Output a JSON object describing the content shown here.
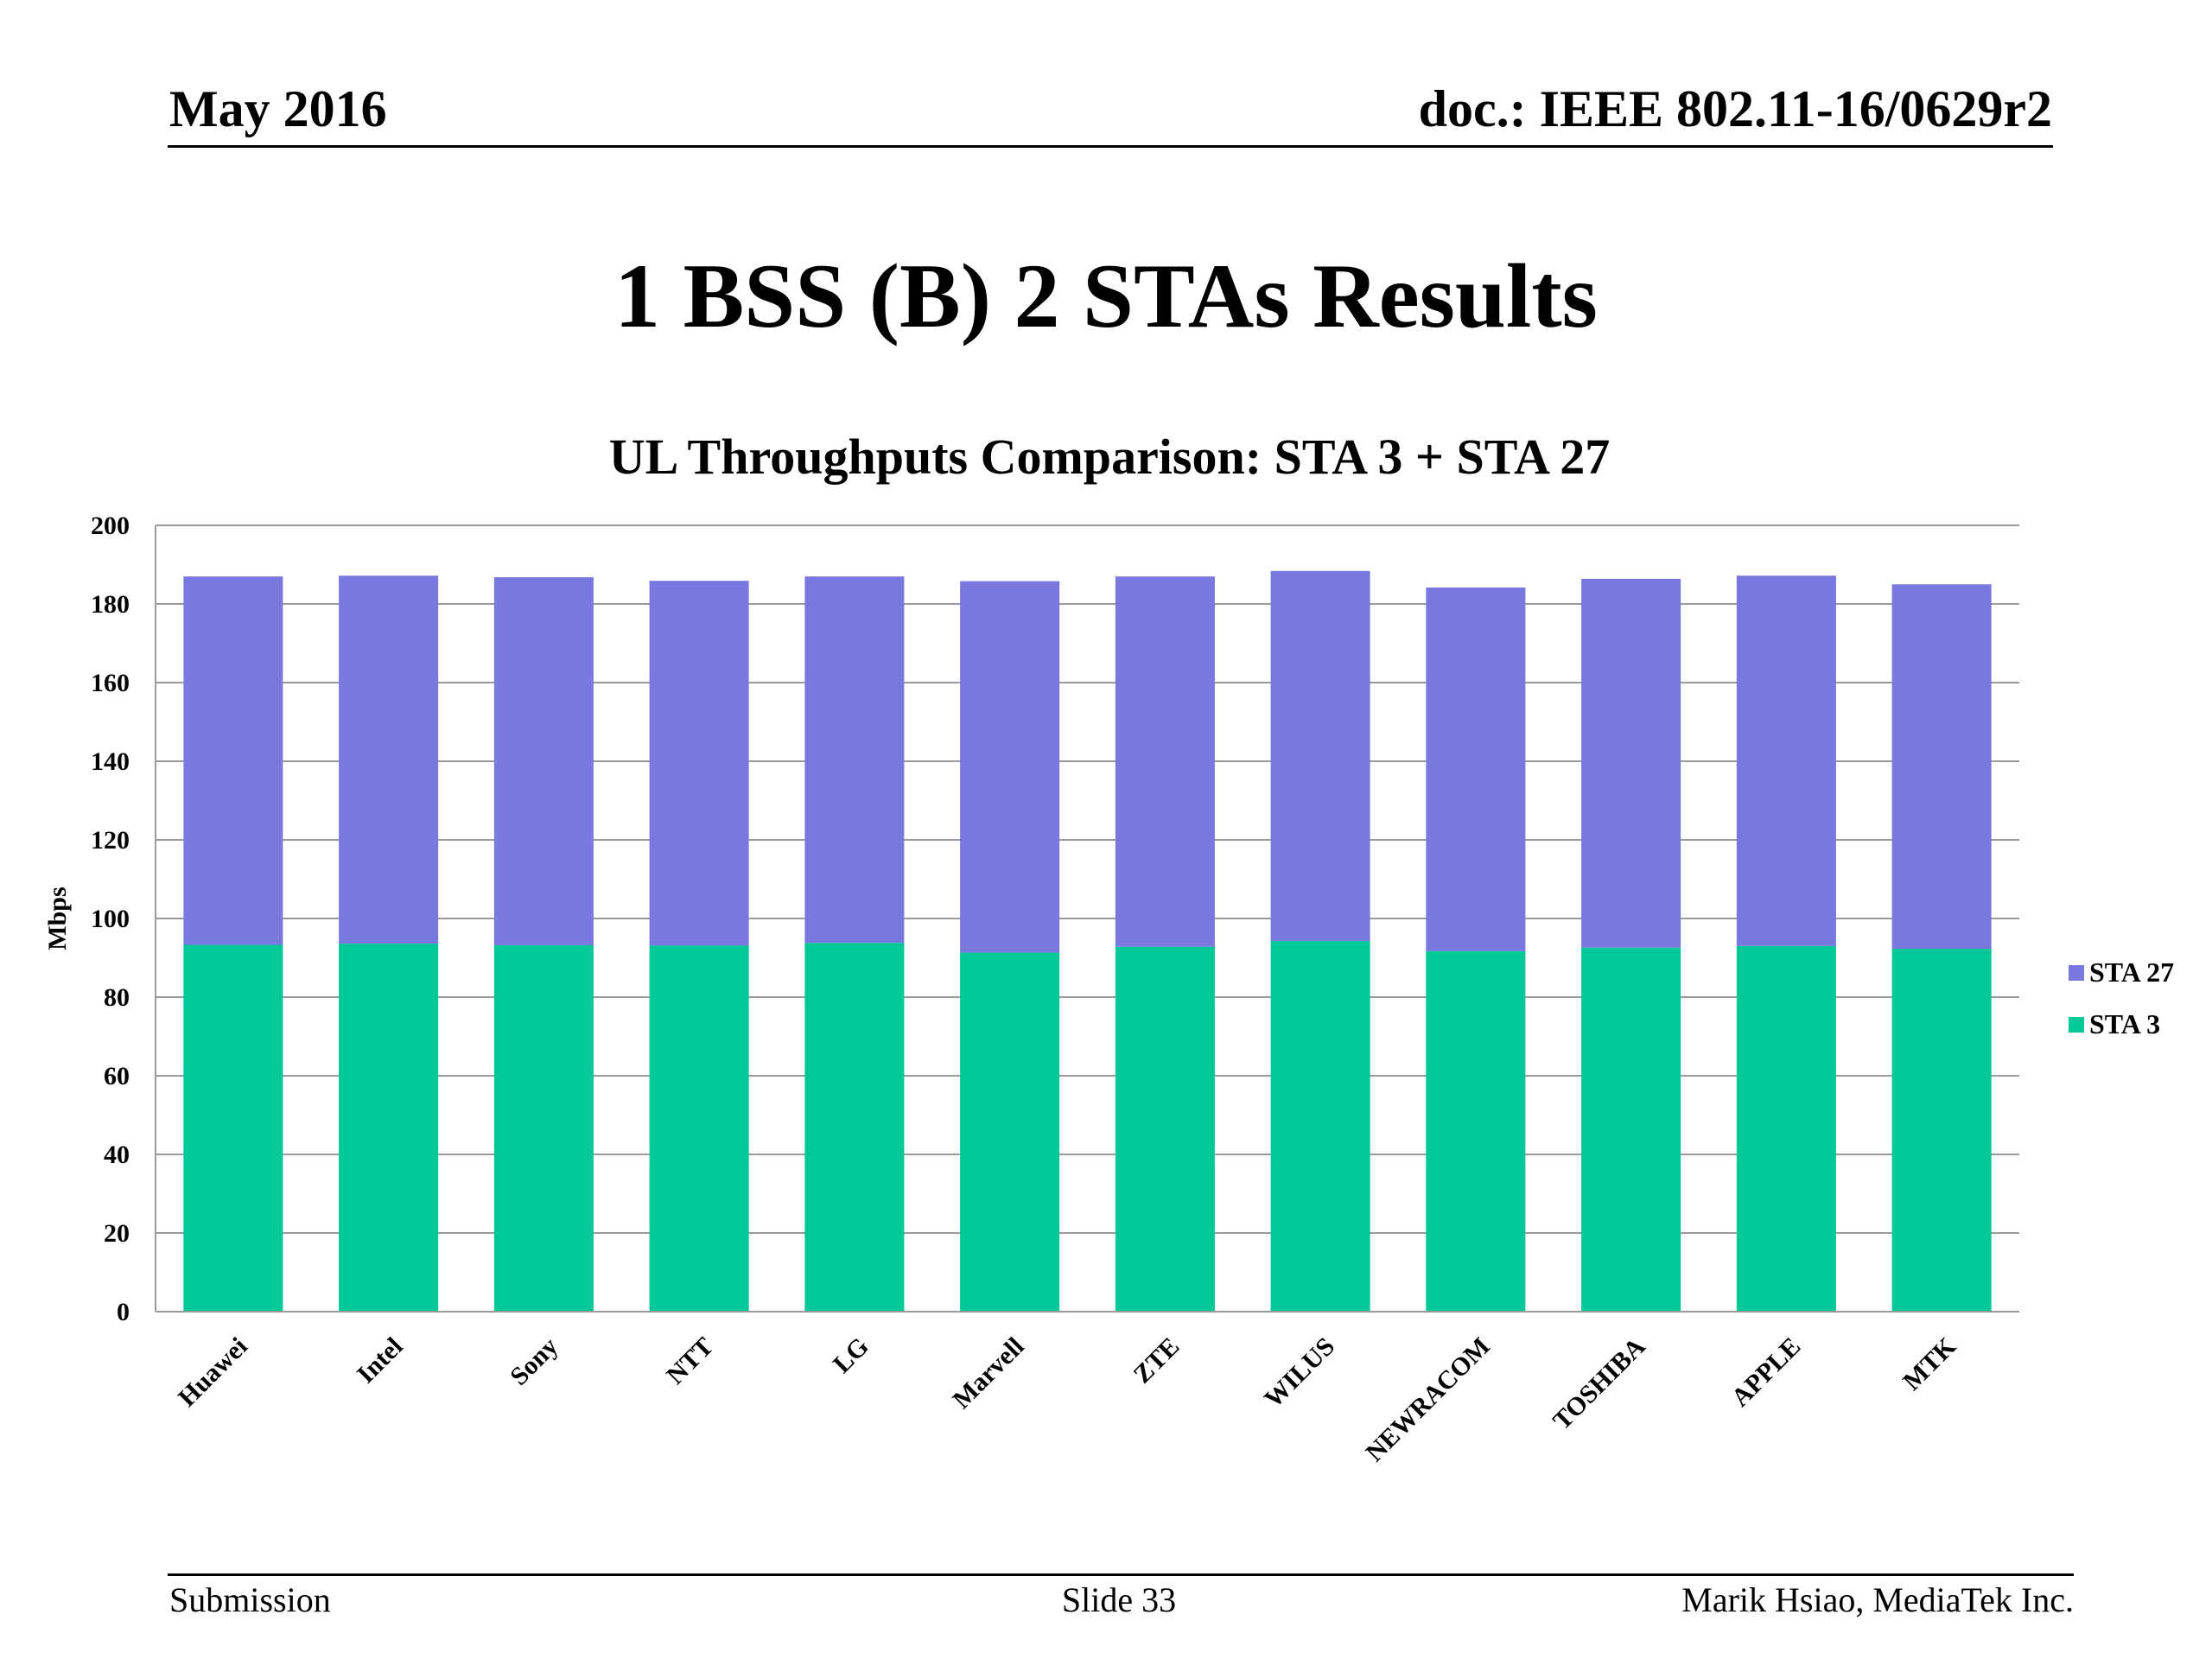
{
  "header": {
    "date": "May 2016",
    "doc_id": "doc.: IEEE 802.11-16/0629r2"
  },
  "slide": {
    "title": "1 BSS (B) 2 STAs Results"
  },
  "footer": {
    "left": "Submission",
    "center": "Slide 33",
    "right": "Marik Hsiao, MediaTek Inc."
  },
  "chart_data": {
    "type": "bar",
    "stacked": true,
    "title": "UL Throughputs Comparison:  STA 3 + STA 27",
    "xlabel": "",
    "ylabel": "Mbps",
    "ylim": [
      0,
      200
    ],
    "yticks": [
      0,
      20,
      40,
      60,
      80,
      100,
      120,
      140,
      160,
      180,
      200
    ],
    "grid": true,
    "legend_position": "right",
    "categories": [
      "Huawei",
      "Intel",
      "Sony",
      "NTT",
      "LG",
      "Marvell",
      "ZTE",
      "WILUS",
      "NEWRACOM",
      "TOSHIBA",
      "APPLE",
      "MTK"
    ],
    "series": [
      {
        "name": "STA 3",
        "color": "#00c896",
        "values": [
          93.3,
          93.6,
          93.2,
          93.1,
          93.8,
          91.3,
          92.8,
          94.3,
          91.7,
          92.6,
          93.0,
          92.3
        ]
      },
      {
        "name": "STA 27",
        "color": "#7878de",
        "values": [
          93.7,
          93.6,
          93.6,
          92.8,
          93.2,
          94.5,
          94.2,
          94.1,
          92.5,
          93.8,
          94.2,
          92.7
        ]
      }
    ],
    "legend_order": [
      "STA 27",
      "STA 3"
    ]
  }
}
